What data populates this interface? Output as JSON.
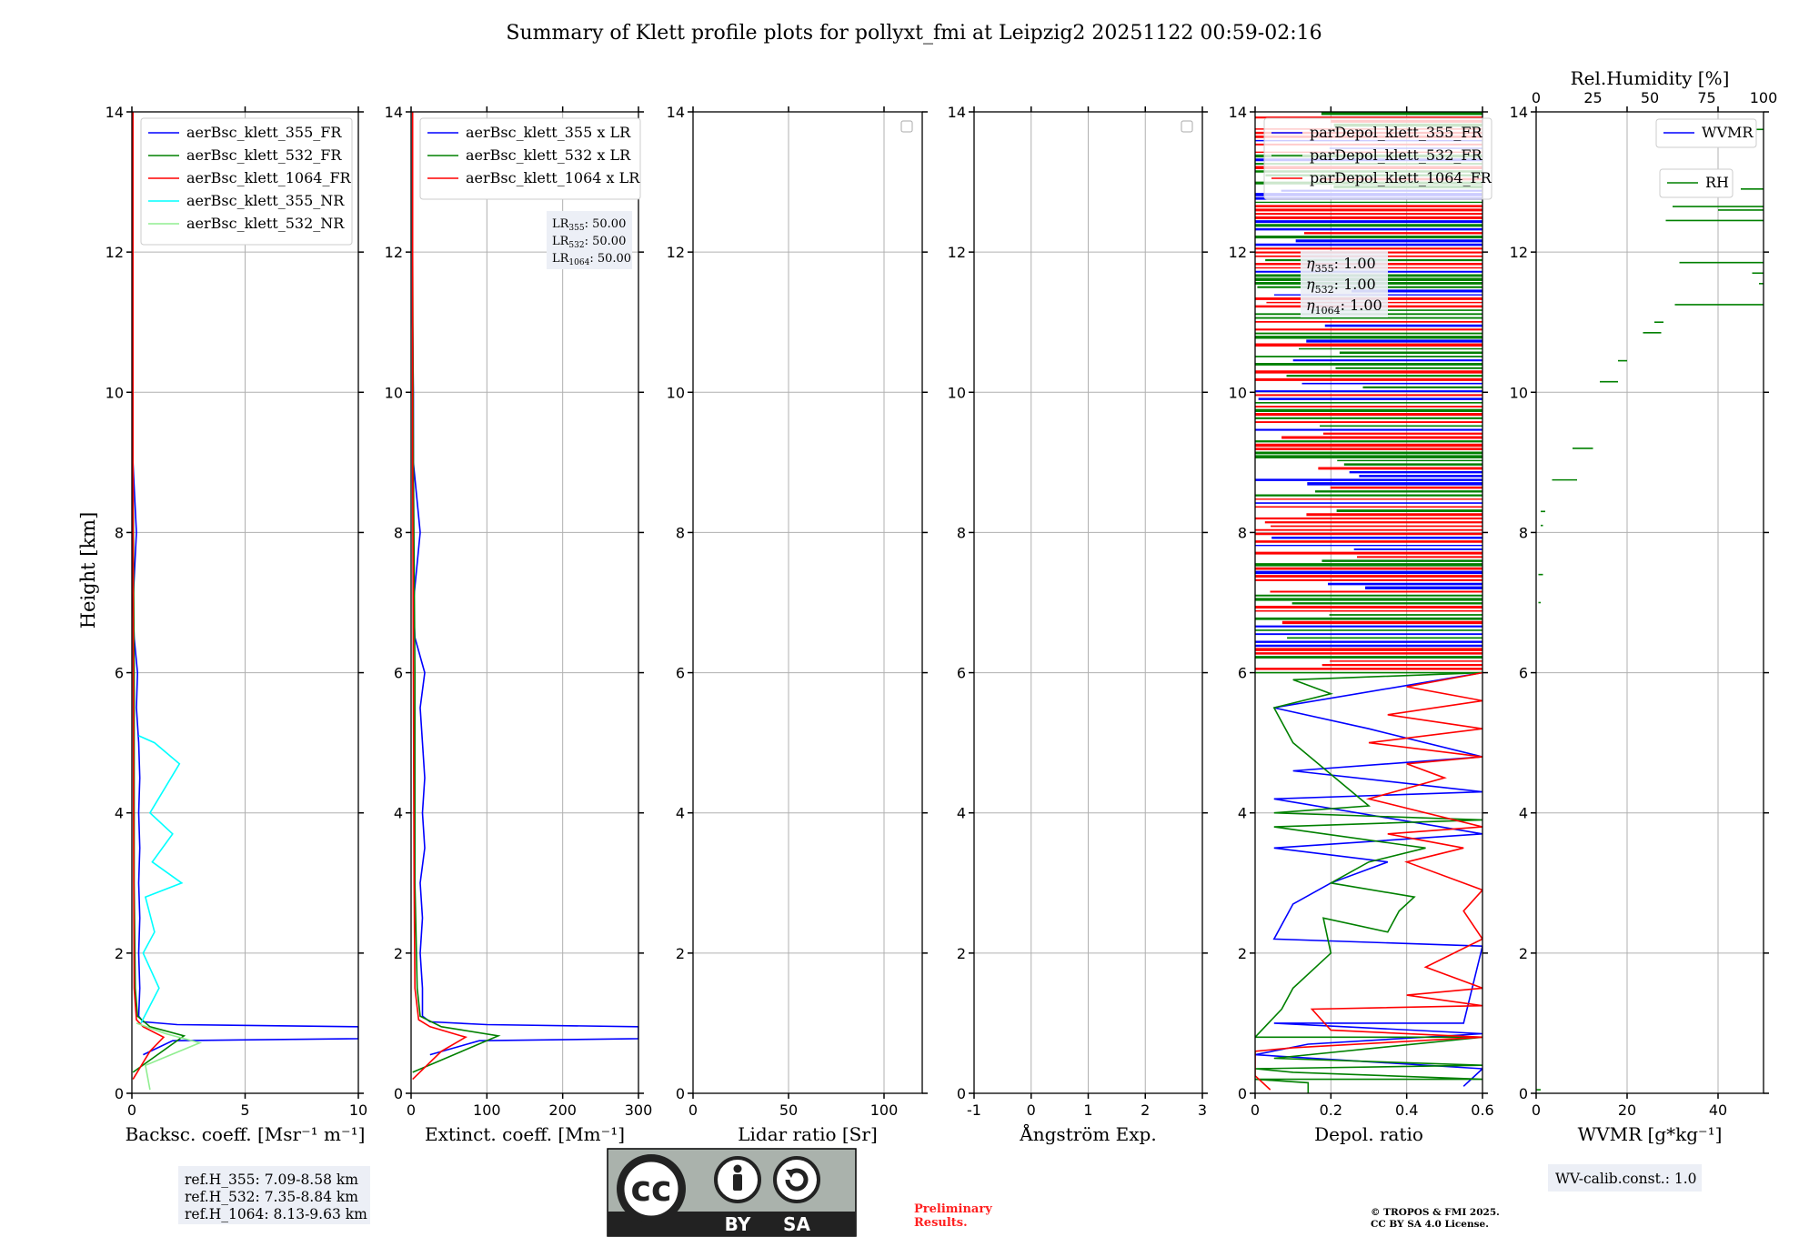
{
  "title": "Summary of Klett profile plots for pollyxt_fmi at Leipzig2 20251122 00:59-02:16",
  "shared_ylabel": "Height [km]",
  "colors": {
    "blue": "#0000ff",
    "green": "#008000",
    "red": "#ff0000",
    "cyan": "#00ffff",
    "lightgreen": "#90ee90",
    "grid": "#b0b0b0",
    "preliminary": "#ff0000"
  },
  "chart_data": [
    {
      "id": "backscatter",
      "type": "line",
      "xlabel": "Backsc. coeff. [Msr⁻¹ m⁻¹]",
      "xlim": [
        0,
        10
      ],
      "ylim": [
        0,
        14
      ],
      "xticks": [
        0,
        5,
        10
      ],
      "yticks": [
        0,
        2,
        4,
        6,
        8,
        10,
        12,
        14
      ],
      "grid": true,
      "legend_placement": "top-left",
      "series": [
        {
          "name": "aerBsc_klett_355_FR",
          "color": "blue"
        },
        {
          "name": "aerBsc_klett_532_FR",
          "color": "green"
        },
        {
          "name": "aerBsc_klett_1064_FR",
          "color": "red"
        },
        {
          "name": "aerBsc_klett_355_NR",
          "color": "cyan"
        },
        {
          "name": "aerBsc_klett_532_NR",
          "color": "lightgreen"
        }
      ],
      "profiles": {
        "aerBsc_klett_355_FR": [
          [
            0.5,
            0.55
          ],
          [
            1.8,
            0.75
          ],
          [
            10,
            0.78
          ],
          [
            10,
            0.95
          ],
          [
            2,
            0.98
          ],
          [
            0.5,
            1.02
          ],
          [
            0.3,
            1.1
          ],
          [
            0.35,
            1.5
          ],
          [
            0.3,
            2.0
          ],
          [
            0.35,
            2.5
          ],
          [
            0.3,
            3.0
          ],
          [
            0.35,
            3.5
          ],
          [
            0.3,
            4.0
          ],
          [
            0.35,
            4.5
          ],
          [
            0.3,
            5.0
          ],
          [
            0.2,
            5.5
          ],
          [
            0.25,
            6.0
          ],
          [
            0.1,
            6.5
          ],
          [
            0.05,
            7.0
          ],
          [
            0.2,
            8.0
          ],
          [
            0.05,
            9.0
          ],
          [
            0.05,
            10.0
          ],
          [
            0.05,
            11.0
          ],
          [
            0.05,
            12.0
          ],
          [
            0.05,
            13.0
          ],
          [
            0.05,
            14.0
          ]
        ],
        "aerBsc_klett_532_FR": [
          [
            0.05,
            0.3
          ],
          [
            2.3,
            0.82
          ],
          [
            0.8,
            0.95
          ],
          [
            0.25,
            1.1
          ],
          [
            0.15,
            1.5
          ],
          [
            0.1,
            3.0
          ],
          [
            0.1,
            6.0
          ],
          [
            0.05,
            9.0
          ],
          [
            0.05,
            12.0
          ],
          [
            0.05,
            14.0
          ]
        ],
        "aerBsc_klett_1064_FR": [
          [
            0.05,
            0.2
          ],
          [
            0.8,
            0.6
          ],
          [
            1.4,
            0.8
          ],
          [
            0.5,
            0.95
          ],
          [
            0.2,
            1.05
          ],
          [
            0.1,
            1.5
          ],
          [
            0.08,
            3.0
          ],
          [
            0.06,
            6.0
          ],
          [
            0.05,
            9.0
          ],
          [
            0.05,
            12.0
          ],
          [
            0.05,
            14.0
          ]
        ],
        "aerBsc_klett_355_NR": [
          [
            0.4,
            1.0
          ],
          [
            1.2,
            1.5
          ],
          [
            0.5,
            2.0
          ],
          [
            1.0,
            2.3
          ],
          [
            0.6,
            2.8
          ],
          [
            2.2,
            3.0
          ],
          [
            0.9,
            3.3
          ],
          [
            1.8,
            3.7
          ],
          [
            0.8,
            4.0
          ],
          [
            2.1,
            4.7
          ],
          [
            1.0,
            5.0
          ],
          [
            0.3,
            5.1
          ]
        ],
        "aerBsc_klett_532_NR": [
          [
            0.8,
            0.05
          ],
          [
            0.6,
            0.4
          ],
          [
            3.0,
            0.72
          ],
          [
            1.5,
            0.85
          ],
          [
            0.2,
            1.0
          ]
        ]
      }
    },
    {
      "id": "extinction",
      "type": "line",
      "xlabel": "Extinct. coeff. [Mm⁻¹]",
      "xlim": [
        0,
        300
      ],
      "ylim": [
        0,
        14
      ],
      "xticks": [
        0,
        100,
        200,
        300
      ],
      "yticks": [
        0,
        2,
        4,
        6,
        8,
        10,
        12,
        14
      ],
      "grid": true,
      "legend_placement": "top-left",
      "series": [
        {
          "name": "aerBsc_klett_355 x LR",
          "color": "blue"
        },
        {
          "name": "aerBsc_klett_532 x LR",
          "color": "green"
        },
        {
          "name": "aerBsc_klett_1064 x LR",
          "color": "red"
        }
      ],
      "annotation": {
        "lines": [
          {
            "label": "LR",
            "sub": "355",
            "value": ": 50.00"
          },
          {
            "label": "LR",
            "sub": "532",
            "value": ": 50.00"
          },
          {
            "label": "LR",
            "sub": "1064",
            "value": ": 50.00"
          }
        ]
      },
      "profiles": {
        "aerBsc_klett_355 x LR": [
          [
            25,
            0.55
          ],
          [
            90,
            0.75
          ],
          [
            300,
            0.78
          ],
          [
            300,
            0.95
          ],
          [
            100,
            0.98
          ],
          [
            25,
            1.02
          ],
          [
            15,
            1.1
          ],
          [
            15,
            1.5
          ],
          [
            12,
            2.0
          ],
          [
            15,
            2.5
          ],
          [
            12,
            3.0
          ],
          [
            18,
            3.5
          ],
          [
            15,
            4.0
          ],
          [
            18,
            4.5
          ],
          [
            15,
            5.0
          ],
          [
            12,
            5.5
          ],
          [
            18,
            6.0
          ],
          [
            5,
            6.5
          ],
          [
            3,
            7.0
          ],
          [
            12,
            8.0
          ],
          [
            3,
            9.0
          ],
          [
            3,
            10.0
          ],
          [
            2,
            11.0
          ],
          [
            2,
            12.0
          ],
          [
            2,
            13.0
          ],
          [
            2,
            14.0
          ]
        ],
        "aerBsc_klett_532 x LR": [
          [
            2,
            0.3
          ],
          [
            115,
            0.82
          ],
          [
            40,
            0.95
          ],
          [
            12,
            1.1
          ],
          [
            8,
            1.5
          ],
          [
            5,
            3.0
          ],
          [
            5,
            6.0
          ],
          [
            3,
            9.0
          ],
          [
            2,
            12.0
          ],
          [
            2,
            14.0
          ]
        ],
        "aerBsc_klett_1064 x LR": [
          [
            2,
            0.2
          ],
          [
            40,
            0.6
          ],
          [
            72,
            0.8
          ],
          [
            25,
            0.95
          ],
          [
            10,
            1.05
          ],
          [
            5,
            1.5
          ],
          [
            4,
            3.0
          ],
          [
            3,
            6.0
          ],
          [
            2,
            9.0
          ],
          [
            2,
            12.0
          ],
          [
            2,
            14.0
          ]
        ]
      }
    },
    {
      "id": "lidar_ratio",
      "type": "line",
      "xlabel": "Lidar ratio [Sr]",
      "xlim": [
        0,
        120
      ],
      "ylim": [
        0,
        14
      ],
      "xticks": [
        0,
        50,
        100
      ],
      "yticks": [
        0,
        2,
        4,
        6,
        8,
        10,
        12,
        14
      ],
      "grid": true,
      "legend_placement": "top-right",
      "series": []
    },
    {
      "id": "angstrom",
      "type": "line",
      "xlabel": "Ångström Exp.",
      "xlim": [
        -1,
        3
      ],
      "ylim": [
        0,
        14
      ],
      "xticks": [
        -1,
        0,
        1,
        2,
        3
      ],
      "yticks": [
        0,
        2,
        4,
        6,
        8,
        10,
        12,
        14
      ],
      "grid": true,
      "legend_placement": "top-right",
      "series": []
    },
    {
      "id": "depol",
      "type": "line",
      "xlabel": "Depol. ratio",
      "xlim": [
        0,
        0.6
      ],
      "ylim": [
        0,
        14
      ],
      "xticks": [
        0.0,
        0.2,
        0.4,
        0.6
      ],
      "yticks": [
        0,
        2,
        4,
        6,
        8,
        10,
        12,
        14
      ],
      "grid": true,
      "legend_placement": "top-left",
      "series": [
        {
          "name": "parDepol_klett_355_FR",
          "color": "blue"
        },
        {
          "name": "parDepol_klett_532_FR",
          "color": "green"
        },
        {
          "name": "parDepol_klett_1064_FR",
          "color": "red"
        }
      ],
      "annotation": {
        "lines": [
          {
            "label": "η",
            "sub": "355",
            "value": ": 1.00"
          },
          {
            "label": "η",
            "sub": "532",
            "value": ": 1.00"
          },
          {
            "label": "η",
            "sub": "1064",
            "value": ": 1.00"
          }
        ]
      },
      "profiles": {
        "parDepol_klett_355_FR": [
          [
            0.55,
            0.1
          ],
          [
            0.6,
            0.35
          ],
          [
            0.0,
            0.55
          ],
          [
            0.14,
            0.7
          ],
          [
            0.6,
            0.85
          ],
          [
            0.05,
            1.0
          ],
          [
            0.55,
            1.0
          ],
          [
            0.6,
            2.1
          ],
          [
            0.05,
            2.2
          ],
          [
            0.1,
            2.7
          ],
          [
            0.2,
            3.0
          ],
          [
            0.35,
            3.3
          ],
          [
            0.05,
            3.5
          ],
          [
            0.6,
            3.7
          ],
          [
            0.05,
            4.2
          ],
          [
            0.6,
            4.3
          ],
          [
            0.1,
            4.6
          ],
          [
            0.6,
            4.8
          ],
          [
            0.3,
            5.2
          ],
          [
            0.05,
            5.5
          ],
          [
            0.6,
            6.0
          ]
        ],
        "parDepol_klett_532_FR": [
          [
            0.14,
            0.0
          ],
          [
            0.14,
            0.15
          ],
          [
            0.0,
            0.2
          ],
          [
            0.6,
            0.2
          ],
          [
            0.1,
            0.3
          ],
          [
            0.0,
            0.35
          ],
          [
            0.6,
            0.4
          ],
          [
            0.05,
            0.5
          ],
          [
            0.6,
            0.8
          ],
          [
            0.0,
            0.8
          ],
          [
            0.07,
            1.2
          ],
          [
            0.1,
            1.5
          ],
          [
            0.2,
            2.0
          ],
          [
            0.18,
            2.5
          ],
          [
            0.35,
            2.3
          ],
          [
            0.38,
            2.6
          ],
          [
            0.42,
            2.8
          ],
          [
            0.2,
            3.0
          ],
          [
            0.3,
            3.3
          ],
          [
            0.45,
            3.5
          ],
          [
            0.05,
            3.8
          ],
          [
            0.6,
            3.9
          ],
          [
            0.05,
            4.0
          ],
          [
            0.3,
            4.1
          ],
          [
            0.1,
            5.0
          ],
          [
            0.05,
            5.5
          ],
          [
            0.2,
            5.7
          ],
          [
            0.1,
            5.9
          ],
          [
            0.6,
            6.0
          ]
        ],
        "parDepol_klett_1064_FR": [
          [
            0.04,
            0.05
          ],
          [
            0.0,
            0.25
          ],
          [
            0.0,
            0.6
          ],
          [
            0.1,
            0.65
          ],
          [
            0.6,
            0.8
          ],
          [
            0.2,
            0.9
          ],
          [
            0.15,
            1.2
          ],
          [
            0.6,
            1.25
          ],
          [
            0.4,
            1.4
          ],
          [
            0.6,
            1.5
          ],
          [
            0.45,
            1.8
          ],
          [
            0.6,
            2.2
          ],
          [
            0.55,
            2.6
          ],
          [
            0.6,
            2.9
          ],
          [
            0.4,
            3.3
          ],
          [
            0.55,
            3.5
          ],
          [
            0.35,
            3.7
          ],
          [
            0.6,
            3.8
          ],
          [
            0.3,
            4.2
          ],
          [
            0.5,
            4.5
          ],
          [
            0.4,
            4.7
          ],
          [
            0.6,
            4.8
          ],
          [
            0.3,
            5.0
          ],
          [
            0.6,
            5.2
          ],
          [
            0.35,
            5.4
          ],
          [
            0.6,
            5.6
          ],
          [
            0.4,
            5.8
          ],
          [
            0.6,
            6.0
          ]
        ]
      }
    },
    {
      "id": "wvmr",
      "type": "line",
      "xlabel": "WVMR [g*kg⁻¹]",
      "xlim": [
        0,
        50
      ],
      "ylim": [
        0,
        14
      ],
      "xticks": [
        0,
        20,
        40
      ],
      "yticks": [
        0,
        2,
        4,
        6,
        8,
        10,
        12,
        14
      ],
      "secondary_xlabel": "Rel.Humidity [%]",
      "secondary_xlim": [
        0,
        100
      ],
      "secondary_xticks": [
        0,
        25,
        50,
        75,
        100
      ],
      "grid": true,
      "legend_placement": "top-right",
      "series": [
        {
          "name": "WVMR",
          "color": "blue"
        },
        {
          "name": "RH",
          "color": "green"
        }
      ],
      "annotation": {
        "lines": [
          {
            "label": "WV-calib.const.: 1.0",
            "sub": "",
            "value": ""
          }
        ]
      },
      "rh_segments": [
        [
          0,
          0.05,
          2,
          0.05
        ],
        [
          1,
          7.0,
          2,
          7.0
        ],
        [
          1,
          7.4,
          3,
          7.4
        ],
        [
          2,
          8.1,
          3,
          8.1
        ],
        [
          2,
          8.3,
          4,
          8.3
        ],
        [
          7,
          8.75,
          18,
          8.75
        ],
        [
          16,
          9.2,
          25,
          9.2
        ],
        [
          28,
          10.15,
          36,
          10.15
        ],
        [
          36,
          10.45,
          40,
          10.45
        ],
        [
          47,
          10.85,
          55,
          10.85
        ],
        [
          52,
          11.0,
          56,
          11.0
        ],
        [
          61,
          11.25,
          101,
          11.25
        ],
        [
          63,
          11.85,
          101,
          11.85
        ],
        [
          95,
          11.7,
          101,
          11.7
        ],
        [
          98,
          11.55,
          101,
          11.55
        ],
        [
          57,
          12.45,
          101,
          12.45
        ],
        [
          60,
          12.65,
          101,
          12.65
        ],
        [
          80,
          12.6,
          101,
          12.6
        ],
        [
          90,
          12.9,
          101,
          12.9
        ],
        [
          96,
          13.75,
          101,
          13.75
        ]
      ]
    }
  ],
  "ref_heights": [
    "ref.H_355: 7.09-8.58 km",
    "ref.H_532: 7.35-8.84 km",
    "ref.H_1064: 8.13-9.63 km"
  ],
  "license_badge": {
    "left": "BY",
    "right": "SA",
    "logo": "cc"
  },
  "preliminary": [
    "Preliminary",
    "Results."
  ],
  "copyright": [
    "© TROPOS & FMI 2025.",
    "CC BY SA 4.0 License."
  ]
}
